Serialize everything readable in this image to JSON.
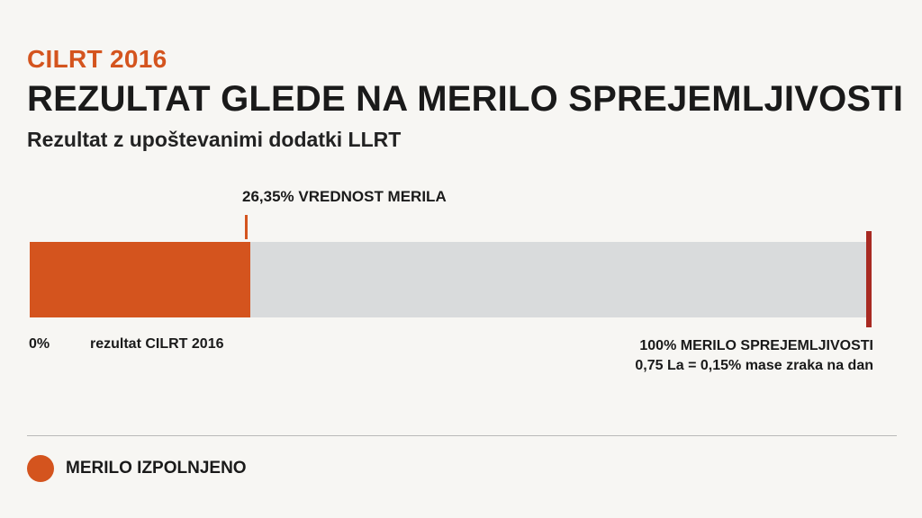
{
  "header": {
    "eyebrow": "CILRT 2016",
    "title": "REZULTAT GLEDE NA MERILO SPREJEMLJIVOSTI",
    "subtitle": "Rezultat z upoštevanimi dodatki LLRT"
  },
  "chart_data": {
    "type": "bar",
    "orientation": "horizontal",
    "x_range": [
      0,
      100
    ],
    "values": [
      26.35
    ],
    "value_label": "26,35% VREDNOST MERILA",
    "start_label": "0%",
    "bar_label": "rezultat CILRT 2016",
    "threshold": {
      "value": 100,
      "label": "100%  MERILO SPREJEMLJIVOSTI",
      "note": "0,75 La = 0,15% mase zraka na dan"
    },
    "legend": [
      {
        "label": "MERILO IZPOLNJENO",
        "color": "#d4541e"
      }
    ],
    "colors": {
      "fill": "#d4541e",
      "track": "#d9dbdc",
      "threshold": "#a82a22"
    }
  }
}
